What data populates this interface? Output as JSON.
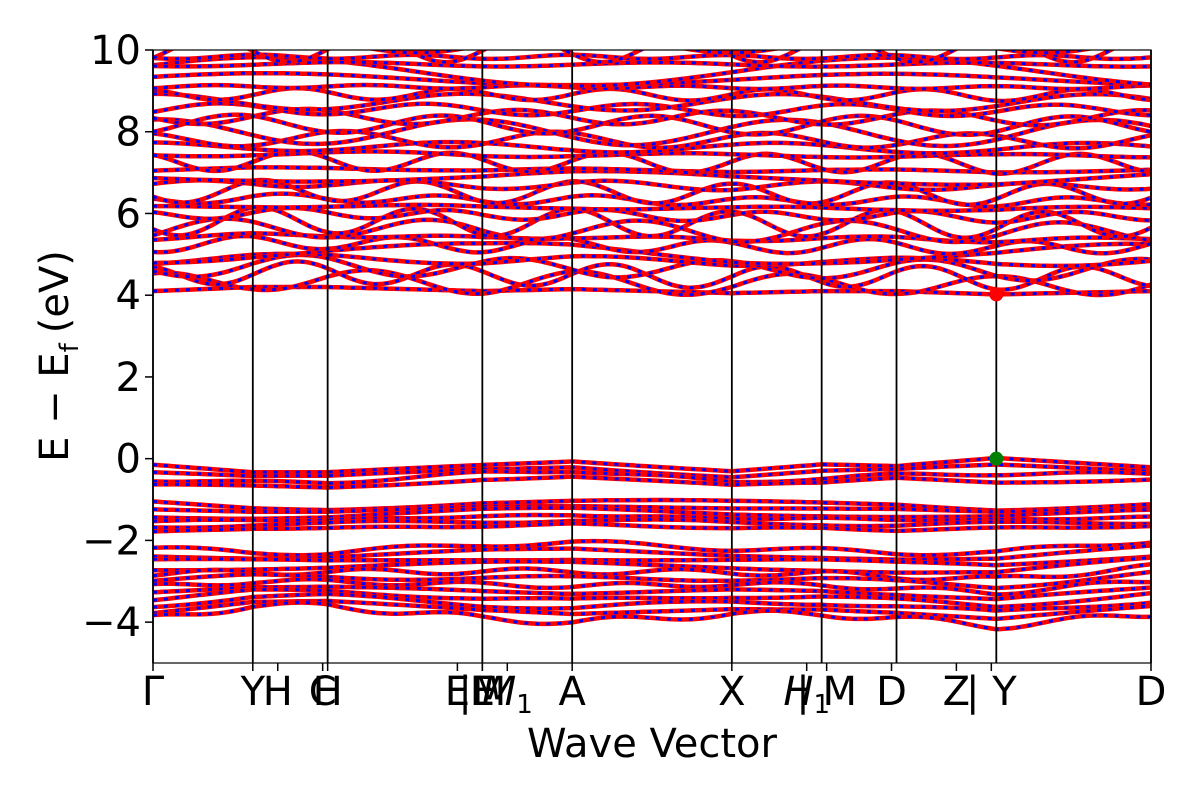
{
  "chart_data": {
    "type": "line",
    "title": "",
    "xlabel": "Wave Vector",
    "ylabel": "E − E",
    "ylabel_sub": "f",
    "ylabel_unit": "(eV)",
    "ylim": [
      -5,
      10
    ],
    "yticks": [
      -4,
      -2,
      0,
      2,
      4,
      6,
      8,
      10
    ],
    "ytick_labels": [
      "−4",
      "−2",
      "0",
      "2",
      "4",
      "6",
      "8",
      "10"
    ],
    "xlim": [
      0,
      10
    ],
    "kpath_ticks": [
      {
        "x": 0.0,
        "label": "Γ"
      },
      {
        "x": 1.0,
        "label": "Y"
      },
      {
        "x": 1.25,
        "label": "H"
      },
      {
        "x": 1.7,
        "label": "C"
      },
      {
        "x": 1.75,
        "label": "H"
      },
      {
        "x": 3.05,
        "label": "E"
      },
      {
        "x": 3.3,
        "label": "|M"
      },
      {
        "x": 3.3,
        "label": "E"
      },
      {
        "x": 3.55,
        "label": "M",
        "sub": "1"
      },
      {
        "x": 4.2,
        "label": "A"
      },
      {
        "x": 5.8,
        "label": "X"
      },
      {
        "x": 6.55,
        "label": "H",
        "sub": "1"
      },
      {
        "x": 6.75,
        "label": "| M"
      },
      {
        "x": 7.4,
        "label": "D"
      },
      {
        "x": 8.05,
        "label": "Z"
      },
      {
        "x": 8.4,
        "label": "| Y"
      },
      {
        "x": 10.0,
        "label": "D"
      }
    ],
    "vlines": [
      0,
      1.0,
      1.75,
      3.3,
      4.2,
      5.8,
      6.7,
      7.45,
      8.45,
      10.0
    ],
    "series": [
      {
        "band_group": "conduction",
        "x": [
          0,
          1.0,
          1.75,
          3.3,
          4.2,
          5.8,
          6.7,
          7.45,
          8.45,
          10.0
        ],
        "y_min": [
          4.1,
          4.2,
          4.2,
          4.1,
          4.15,
          4.05,
          4.1,
          4.1,
          4.02,
          4.1
        ],
        "y_max": 10,
        "color_up": "#ff0000",
        "color_down": "#0000ff"
      },
      {
        "band_group": "valence_top",
        "x": [
          0,
          1.0,
          1.75,
          3.3,
          4.2,
          5.8,
          6.7,
          7.45,
          8.45,
          10.0
        ],
        "y_top": [
          -0.15,
          -0.35,
          -0.35,
          -0.15,
          -0.05,
          -0.3,
          -0.15,
          -0.2,
          0.0,
          -0.2
        ],
        "y_bottom": [
          -0.7,
          -0.7,
          -0.7,
          -0.45,
          -0.4,
          -0.7,
          -0.65,
          -0.5,
          -0.55,
          -0.45
        ],
        "color_up": "#ff0000",
        "color_down": "#0000ff"
      },
      {
        "band_group": "valence_mid",
        "x": [
          0,
          1.0,
          1.75,
          3.3,
          4.2,
          5.8,
          6.7,
          7.45,
          8.45,
          10.0
        ],
        "y_top": [
          -1.1,
          -1.2,
          -1.2,
          -1.05,
          -1.05,
          -1.1,
          -1.1,
          -1.1,
          -1.2,
          -1.1
        ],
        "y_bottom": [
          -1.8,
          -1.7,
          -1.7,
          -1.65,
          -1.6,
          -1.7,
          -1.7,
          -1.75,
          -1.7,
          -1.65
        ],
        "color_up": "#ff0000",
        "color_down": "#0000ff"
      },
      {
        "band_group": "valence_low",
        "x": [
          0,
          1.0,
          1.75,
          3.3,
          4.2,
          5.8,
          6.7,
          7.45,
          8.45,
          10.0
        ],
        "y_top": [
          -2.2,
          -2.3,
          -2.3,
          -2.1,
          -2.05,
          -2.2,
          -2.25,
          -2.3,
          -2.3,
          -2.0
        ],
        "y_bottom": [
          -3.9,
          -3.6,
          -3.6,
          -3.9,
          -4.0,
          -3.8,
          -3.8,
          -3.9,
          -4.1,
          -3.8
        ],
        "color_up": "#ff0000",
        "color_down": "#0000ff"
      }
    ],
    "markers": [
      {
        "name": "cbm",
        "x": 8.45,
        "y": 4.02,
        "color": "#ff0000"
      },
      {
        "name": "vbm",
        "x": 8.45,
        "y": 0.0,
        "color": "#008000"
      }
    ]
  }
}
